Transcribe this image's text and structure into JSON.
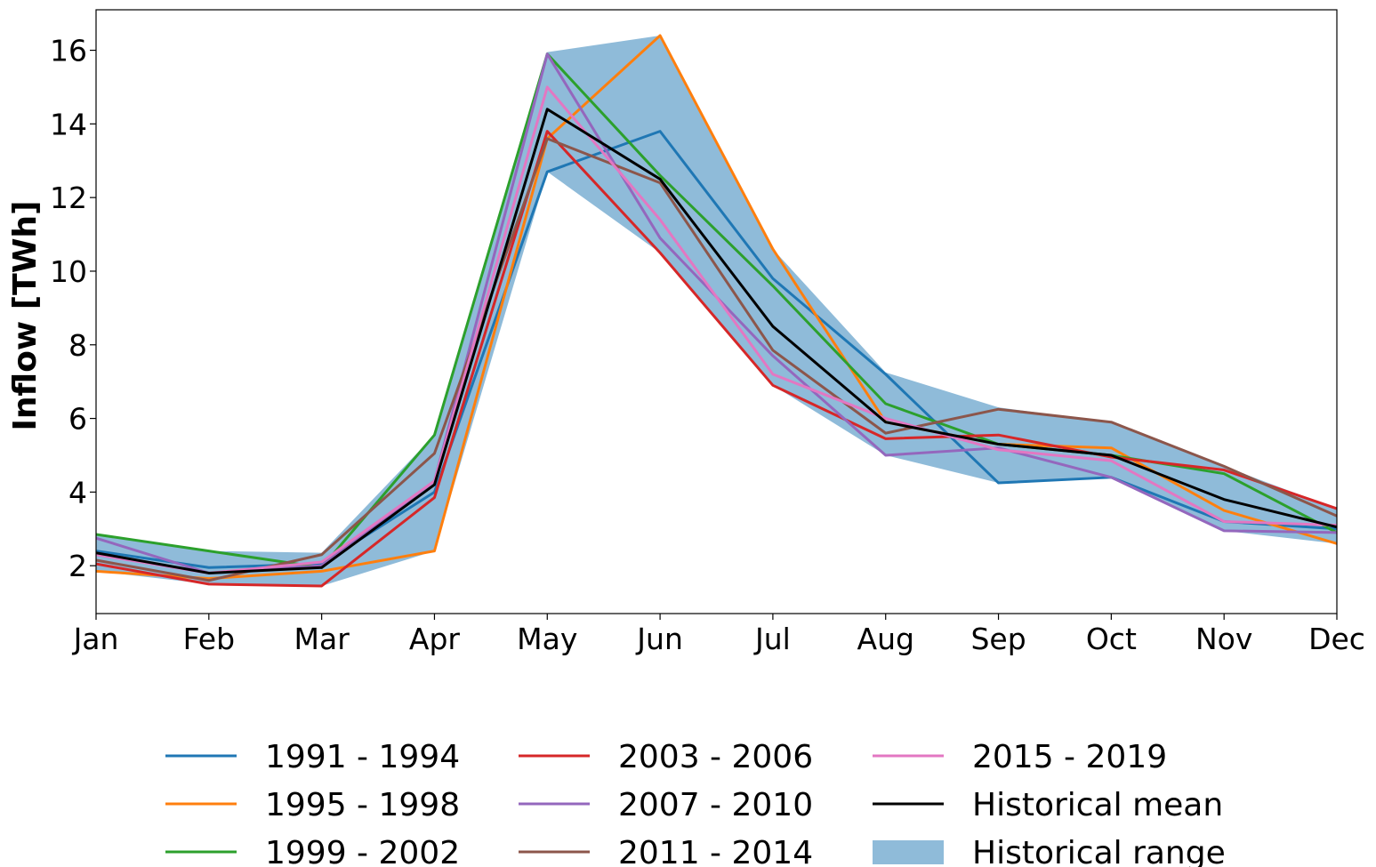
{
  "chart_data": {
    "type": "line",
    "title": "",
    "xlabel": "",
    "ylabel": "Inflow [TWh]",
    "categories": [
      "Jan",
      "Feb",
      "Mar",
      "Apr",
      "May",
      "Jun",
      "Jul",
      "Aug",
      "Sep",
      "Oct",
      "Nov",
      "Dec"
    ],
    "ylim": [
      0.7,
      17.1
    ],
    "yticks": [
      "2",
      "4",
      "6",
      "8",
      "10",
      "12",
      "14",
      "16"
    ],
    "grid": false,
    "legend_position": "bottom",
    "series": [
      {
        "name": "1991 - 1994",
        "color": "#1f77b4",
        "values": [
          2.4,
          1.95,
          2.05,
          4.0,
          12.7,
          13.8,
          9.8,
          7.2,
          4.25,
          4.4,
          3.2,
          3.0
        ]
      },
      {
        "name": "1995 - 1998",
        "color": "#ff7f0e",
        "values": [
          1.85,
          1.65,
          1.85,
          2.4,
          13.6,
          16.4,
          10.6,
          5.9,
          5.3,
          5.2,
          3.5,
          2.6
        ]
      },
      {
        "name": "1999 - 2002",
        "color": "#2ca02c",
        "values": [
          2.85,
          2.4,
          1.95,
          5.55,
          15.9,
          12.6,
          9.6,
          6.4,
          5.3,
          5.0,
          4.5,
          2.9
        ]
      },
      {
        "name": "2003 - 2006",
        "color": "#d62728",
        "values": [
          2.05,
          1.5,
          1.45,
          3.85,
          13.8,
          10.5,
          6.9,
          5.45,
          5.55,
          4.95,
          4.6,
          3.55
        ]
      },
      {
        "name": "2007 - 2010",
        "color": "#9467bd",
        "values": [
          2.75,
          1.8,
          2.0,
          4.3,
          15.9,
          10.9,
          7.7,
          5.0,
          5.2,
          4.4,
          2.95,
          2.9
        ]
      },
      {
        "name": "2011 - 2014",
        "color": "#8c564b",
        "values": [
          2.15,
          1.6,
          2.3,
          5.05,
          13.6,
          12.4,
          7.85,
          5.6,
          6.25,
          5.9,
          4.7,
          3.35
        ]
      },
      {
        "name": "2015 - 2019",
        "color": "#e377c2",
        "values": [
          2.3,
          1.8,
          2.1,
          4.3,
          15.0,
          11.4,
          7.2,
          6.0,
          5.15,
          4.85,
          3.2,
          3.1
        ]
      },
      {
        "name": "Historical mean",
        "color": "#000000",
        "values": [
          2.35,
          1.8,
          1.95,
          4.2,
          14.4,
          12.5,
          8.5,
          5.9,
          5.3,
          5.0,
          3.8,
          3.05
        ]
      }
    ],
    "range": {
      "name": "Historical range",
      "color": "#1f77b4",
      "opacity": 0.5,
      "lower": [
        1.85,
        1.5,
        1.45,
        2.4,
        12.7,
        10.5,
        6.9,
        5.0,
        4.25,
        4.4,
        2.95,
        2.6
      ],
      "upper": [
        2.85,
        2.4,
        2.35,
        5.55,
        15.95,
        16.4,
        10.6,
        7.25,
        6.3,
        5.9,
        4.7,
        3.55
      ]
    }
  }
}
